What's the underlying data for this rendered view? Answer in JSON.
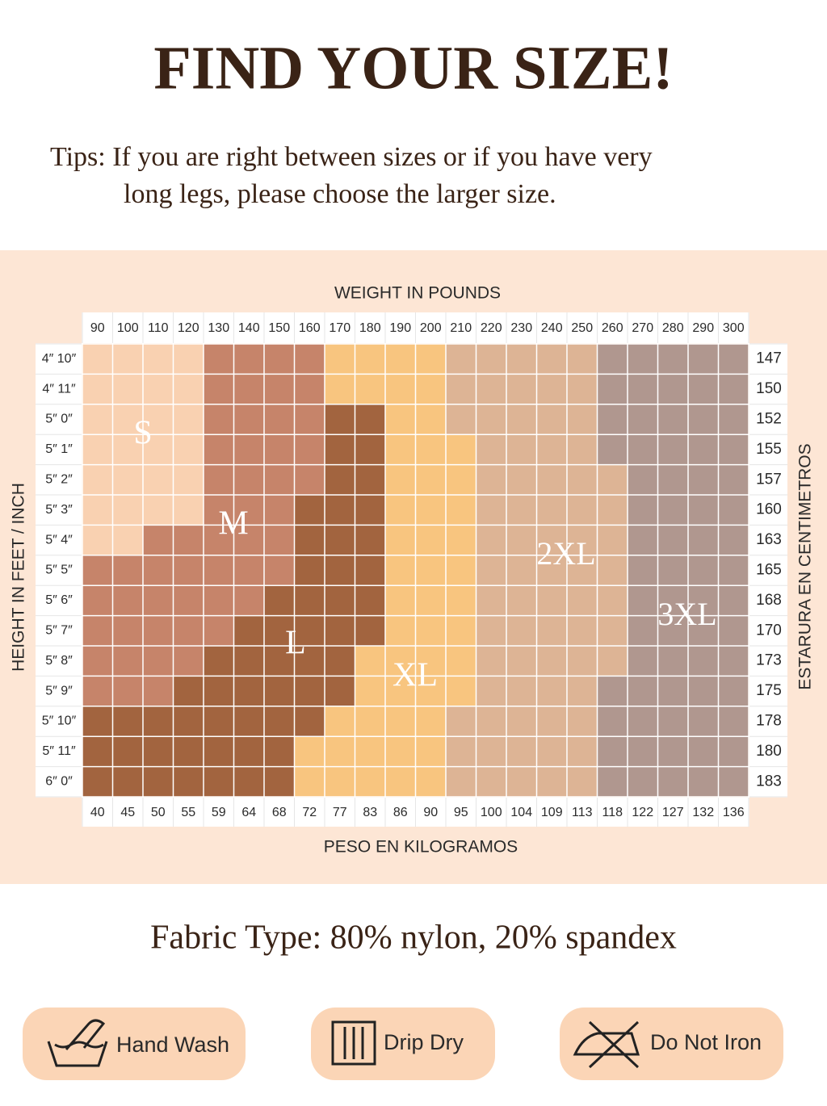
{
  "header": {
    "title": "FIND YOUR SIZE!",
    "tips": [
      "Tips: If you are right between sizes or if you have very",
      "long legs, please choose the larger size."
    ]
  },
  "size_chart": {
    "top_axis_label": "WEIGHT IN POUNDS",
    "bottom_axis_label": "PESO EN KILOGRAMOS",
    "left_axis_label": "HEIGHT IN FEET / INCH",
    "right_axis_label": "ESTARURA EN CENTIMETROS",
    "pounds": [
      90,
      100,
      110,
      120,
      130,
      140,
      150,
      160,
      170,
      180,
      190,
      200,
      210,
      220,
      230,
      240,
      250,
      260,
      270,
      280,
      290,
      300
    ],
    "kilograms": [
      40,
      45,
      50,
      55,
      59,
      64,
      68,
      72,
      77,
      83,
      86,
      90,
      95,
      100,
      104,
      109,
      113,
      118,
      122,
      127,
      132,
      136
    ],
    "heights_ft_in": [
      "4″ 10″",
      "4″ 11″",
      "5″ 0″",
      "5″ 1″",
      "5″ 2″",
      "5″ 3″",
      "5″ 4″",
      "5″ 5″",
      "5″ 6″",
      "5″ 7″",
      "5″ 8″",
      "5″ 9″",
      "5″ 10″",
      "5″ 11″",
      "6″ 0″"
    ],
    "heights_cm": [
      147,
      150,
      152,
      155,
      157,
      160,
      163,
      165,
      168,
      170,
      173,
      175,
      178,
      180,
      183
    ],
    "sizes": [
      {
        "label": "S",
        "color": "#f9d1b1"
      },
      {
        "label": "M",
        "color": "#c6846a"
      },
      {
        "label": "L",
        "color": "#a2643f"
      },
      {
        "label": "XL",
        "color": "#f8c57f"
      },
      {
        "label": "2XL",
        "color": "#ddb495"
      },
      {
        "label": "3XL",
        "color": "#b0978f"
      }
    ],
    "rows": [
      [
        4,
        4,
        0,
        4,
        5,
        5
      ],
      [
        4,
        4,
        0,
        4,
        5,
        5
      ],
      [
        4,
        4,
        2,
        2,
        5,
        5
      ],
      [
        4,
        4,
        2,
        3,
        4,
        5
      ],
      [
        4,
        4,
        2,
        3,
        5,
        4
      ],
      [
        4,
        3,
        3,
        3,
        5,
        4
      ],
      [
        2,
        5,
        3,
        3,
        5,
        4
      ],
      [
        0,
        7,
        3,
        3,
        5,
        4
      ],
      [
        0,
        6,
        4,
        3,
        5,
        4
      ],
      [
        0,
        5,
        5,
        3,
        5,
        4
      ],
      [
        0,
        4,
        5,
        4,
        5,
        4
      ],
      [
        0,
        3,
        6,
        4,
        4,
        5
      ],
      [
        0,
        0,
        8,
        4,
        5,
        5
      ],
      [
        0,
        0,
        7,
        5,
        5,
        5
      ],
      [
        0,
        0,
        7,
        5,
        5,
        5
      ]
    ]
  },
  "fabric": "Fabric Type: 80% nylon, 20% spandex",
  "care": [
    "Hand Wash",
    "Drip Dry",
    "Do Not Iron"
  ]
}
